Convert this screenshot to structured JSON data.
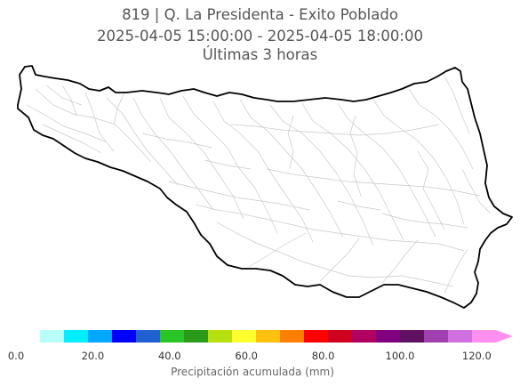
{
  "title": {
    "line1": "819 | Q. La Presidenta - Exito Poblado",
    "line2": "2025-04-05 15:00:00 - 2025-04-05 18:00:00",
    "line3": "Últimas 3 horas"
  },
  "colorbar": {
    "label": "Precipitación acumulada (mm)",
    "ticks": [
      "0.0",
      "20.0",
      "40.0",
      "60.0",
      "80.0",
      "100.0",
      "120.0"
    ],
    "range": [
      0,
      125
    ],
    "extend": "max",
    "colors": [
      "#ffffff",
      "#b8fff8",
      "#00eeff",
      "#00a7ff",
      "#0000ff",
      "#2060d0",
      "#28c428",
      "#2a9a18",
      "#b8e010",
      "#ffff30",
      "#ffc010",
      "#ff8000",
      "#ff0000",
      "#d00020",
      "#b00060",
      "#800080",
      "#601060",
      "#a040b0",
      "#d070e0",
      "#ff90f0"
    ]
  },
  "map": {
    "boundary_color": "#000000",
    "streams_color": "#c8c8c8"
  }
}
